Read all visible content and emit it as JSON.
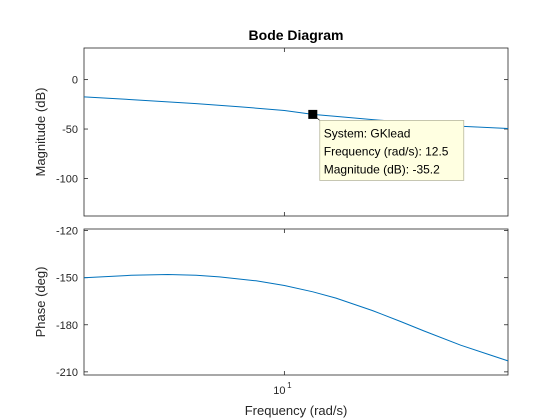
{
  "chart_data": {
    "type": "line",
    "title": "Bode Diagram",
    "xlabel": "Frequency  (rad/s)",
    "x_scale": "log",
    "xlim": [
      2.07,
      58
    ],
    "x_ticks": [
      {
        "value": 10,
        "label": "10",
        "exponent": "1"
      }
    ],
    "grid": false,
    "colors": {
      "line": "#0072BD",
      "axis": "#262626",
      "datatip_bg": "#FFFFE1",
      "datatip_marker": "#000000"
    },
    "magnitude": {
      "ylabel": "Magnitude (dB)",
      "ylim": [
        -138,
        32
      ],
      "yticks": [
        0,
        -50,
        -100
      ],
      "series": [
        {
          "name": "GKlead",
          "x": [
            2.07,
            3,
            5,
            7,
            10,
            12.5,
            15,
            20,
            30,
            40,
            58
          ],
          "y": [
            -17.5,
            -20.2,
            -24.3,
            -27.4,
            -31.2,
            -35.2,
            -37.2,
            -40.5,
            -44.6,
            -47.1,
            -49.5
          ]
        }
      ]
    },
    "phase": {
      "ylabel": "Phase (deg)",
      "ylim": [
        -212,
        -119
      ],
      "yticks": [
        -120,
        -150,
        -180,
        -210
      ],
      "series": [
        {
          "name": "GKlead",
          "x": [
            2.07,
            3,
            4,
            5,
            6,
            8,
            10,
            12.5,
            15,
            20,
            25,
            30,
            40,
            50,
            58
          ],
          "y": [
            -150,
            -148.5,
            -148,
            -148.5,
            -149.5,
            -152,
            -155,
            -159,
            -163,
            -171,
            -178,
            -184,
            -193,
            -199,
            -203
          ]
        }
      ]
    },
    "datatip": {
      "x": 12.5,
      "y": -35.2,
      "lines": [
        "System: GKlead",
        "Frequency (rad/s): 12.5",
        "Magnitude (dB): -35.2"
      ]
    }
  }
}
